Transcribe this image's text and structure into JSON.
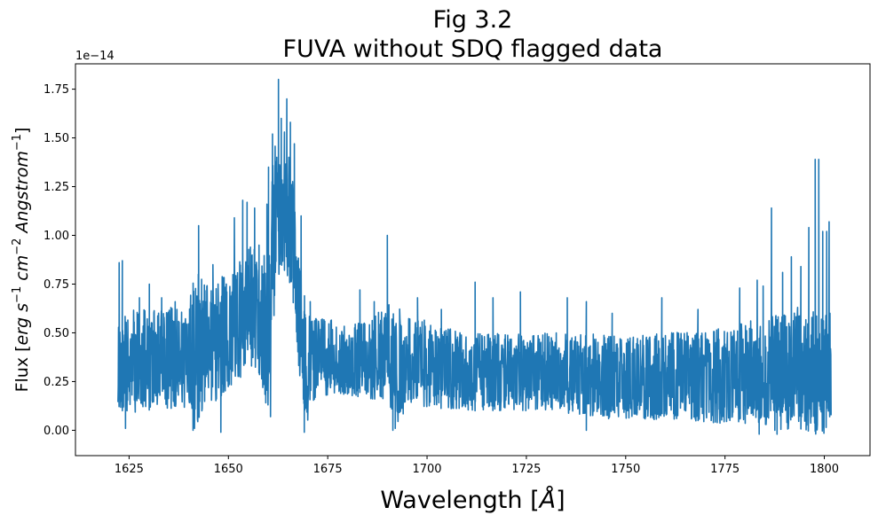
{
  "chart_data": {
    "type": "line",
    "title_lines": [
      "Fig 3.2",
      "FUVA without SDQ flagged data"
    ],
    "xlabel": {
      "prefix": "Wavelength [",
      "symbol": "Å",
      "suffix": "]"
    },
    "ylabel": {
      "prefix": "Flux [",
      "suffix": "]",
      "parts": [
        {
          "text": "erg",
          "style": "italic"
        },
        {
          "text": " s",
          "style": "italic"
        },
        {
          "text": "−1",
          "style": "sup"
        },
        {
          "text": " cm",
          "style": "italic"
        },
        {
          "text": "−2",
          "style": "sup"
        },
        {
          "text": " Angstrom",
          "style": "italic"
        },
        {
          "text": "−1",
          "style": "sup"
        }
      ]
    },
    "y_offset_label": "1e−14",
    "y_scale": 1e-14,
    "xlim": [
      1611.5,
      1811.5
    ],
    "ylim": [
      -0.13,
      1.88
    ],
    "x_ticks": [
      1625,
      1650,
      1675,
      1700,
      1725,
      1750,
      1775,
      1800
    ],
    "x_tick_labels": [
      "1625",
      "1650",
      "1675",
      "1700",
      "1725",
      "1750",
      "1775",
      "1800"
    ],
    "y_ticks": [
      0.0,
      0.25,
      0.5,
      0.75,
      1.0,
      1.25,
      1.5,
      1.75
    ],
    "y_tick_labels": [
      "0.00",
      "0.25",
      "0.50",
      "0.75",
      "1.00",
      "1.25",
      "1.50",
      "1.75"
    ],
    "grid": false,
    "series": [
      {
        "color": "#1f77b4",
        "x_range": [
          1622.2,
          1801.7
        ],
        "envelope_x": [
          1622.2,
          1625,
          1630,
          1635,
          1640,
          1641.5,
          1645,
          1648,
          1650,
          1653,
          1656,
          1658,
          1660,
          1662,
          1664,
          1666,
          1668,
          1670,
          1672,
          1675,
          1680,
          1685,
          1690,
          1692,
          1695,
          1700,
          1710,
          1720,
          1730,
          1740,
          1750,
          1760,
          1770,
          1780,
          1785,
          1787,
          1790,
          1793,
          1796,
          1798,
          1800,
          1801.7
        ],
        "envelope_low": [
          0.08,
          0.08,
          0.1,
          0.11,
          0.11,
          0.0,
          0.15,
          0.13,
          0.22,
          0.26,
          0.31,
          0.28,
          0.03,
          0.77,
          0.8,
          0.73,
          0.25,
          0.01,
          0.18,
          0.18,
          0.18,
          0.16,
          0.16,
          0.01,
          0.12,
          0.11,
          0.1,
          0.1,
          0.1,
          0.07,
          0.05,
          0.05,
          0.04,
          0.03,
          0.02,
          -0.02,
          0.0,
          0.0,
          -0.02,
          -0.02,
          -0.02,
          -0.02
        ],
        "envelope_high": [
          0.55,
          0.62,
          0.62,
          0.63,
          0.65,
          0.82,
          0.75,
          0.8,
          0.82,
          0.93,
          0.97,
          0.83,
          1.12,
          1.55,
          1.48,
          1.35,
          0.85,
          0.6,
          0.58,
          0.57,
          0.56,
          0.55,
          0.65,
          0.68,
          0.6,
          0.56,
          0.5,
          0.5,
          0.5,
          0.5,
          0.48,
          0.5,
          0.52,
          0.56,
          0.58,
          0.6,
          0.6,
          0.65,
          0.62,
          0.6,
          0.63,
          0.6
        ],
        "spikes": [
          {
            "x": 1622.5,
            "y": 0.86
          },
          {
            "x": 1623.3,
            "y": 0.87
          },
          {
            "x": 1627.6,
            "y": 0.68
          },
          {
            "x": 1630.1,
            "y": 0.75
          },
          {
            "x": 1633.2,
            "y": 0.68
          },
          {
            "x": 1636.6,
            "y": 0.66
          },
          {
            "x": 1642.5,
            "y": 1.05
          },
          {
            "x": 1646.1,
            "y": 0.85
          },
          {
            "x": 1649.6,
            "y": 0.71
          },
          {
            "x": 1651.5,
            "y": 1.09
          },
          {
            "x": 1653.6,
            "y": 1.18
          },
          {
            "x": 1654.7,
            "y": 1.17
          },
          {
            "x": 1656.6,
            "y": 1.14
          },
          {
            "x": 1657.7,
            "y": 0.95
          },
          {
            "x": 1659.7,
            "y": 1.16
          },
          {
            "x": 1660.1,
            "y": 1.35
          },
          {
            "x": 1661.1,
            "y": 1.52
          },
          {
            "x": 1662.6,
            "y": 1.8
          },
          {
            "x": 1663.3,
            "y": 1.6
          },
          {
            "x": 1664.1,
            "y": 1.53
          },
          {
            "x": 1664.7,
            "y": 1.7
          },
          {
            "x": 1665.6,
            "y": 1.58
          },
          {
            "x": 1666.6,
            "y": 1.47
          },
          {
            "x": 1668.3,
            "y": 1.1
          },
          {
            "x": 1670.6,
            "y": 0.66
          },
          {
            "x": 1683.1,
            "y": 0.72
          },
          {
            "x": 1686.7,
            "y": 0.66
          },
          {
            "x": 1690.0,
            "y": 1.0
          },
          {
            "x": 1697.6,
            "y": 0.68
          },
          {
            "x": 1703.6,
            "y": 0.62
          },
          {
            "x": 1712.1,
            "y": 0.76
          },
          {
            "x": 1716.6,
            "y": 0.68
          },
          {
            "x": 1723.5,
            "y": 0.71
          },
          {
            "x": 1735.3,
            "y": 0.68
          },
          {
            "x": 1740.1,
            "y": 0.66
          },
          {
            "x": 1746.6,
            "y": 0.6
          },
          {
            "x": 1759.1,
            "y": 0.68
          },
          {
            "x": 1768.2,
            "y": 0.62
          },
          {
            "x": 1778.7,
            "y": 0.73
          },
          {
            "x": 1783.1,
            "y": 0.77
          },
          {
            "x": 1784.6,
            "y": 0.74
          },
          {
            "x": 1786.7,
            "y": 1.14
          },
          {
            "x": 1789.5,
            "y": 0.81
          },
          {
            "x": 1791.7,
            "y": 0.89
          },
          {
            "x": 1794.1,
            "y": 0.84
          },
          {
            "x": 1796.1,
            "y": 1.04
          },
          {
            "x": 1797.7,
            "y": 1.39
          },
          {
            "x": 1798.6,
            "y": 1.39
          },
          {
            "x": 1799.6,
            "y": 1.02
          },
          {
            "x": 1800.6,
            "y": 1.02
          },
          {
            "x": 1801.2,
            "y": 1.07
          }
        ],
        "dips": [
          {
            "x": 1624.1,
            "y": 0.01
          },
          {
            "x": 1641.1,
            "y": 0.0
          },
          {
            "x": 1648.1,
            "y": -0.01
          },
          {
            "x": 1660.6,
            "y": 0.07
          },
          {
            "x": 1669.1,
            "y": -0.01
          },
          {
            "x": 1691.4,
            "y": 0.0
          },
          {
            "x": 1692.0,
            "y": 0.01
          },
          {
            "x": 1740.1,
            "y": 0.0
          },
          {
            "x": 1783.6,
            "y": -0.02
          },
          {
            "x": 1788.1,
            "y": -0.02
          }
        ]
      }
    ]
  }
}
